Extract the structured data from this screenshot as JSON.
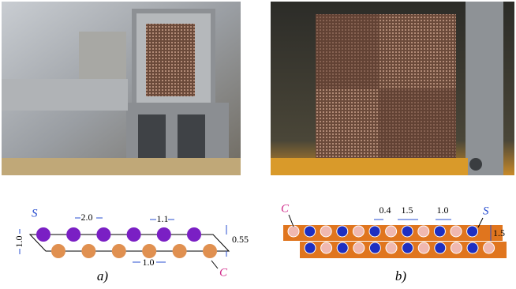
{
  "panel_a": {
    "label": "a)",
    "species_top": "S",
    "species_bottom": "C",
    "dimensions": [
      "2.0",
      "1.1",
      "0.55",
      "1.0",
      "1.0"
    ]
  },
  "panel_b": {
    "label": "b)",
    "species_top": "S",
    "species_bottom": "C",
    "dimensions": [
      "0.4",
      "1.5",
      "1.0",
      "1.5"
    ]
  }
}
